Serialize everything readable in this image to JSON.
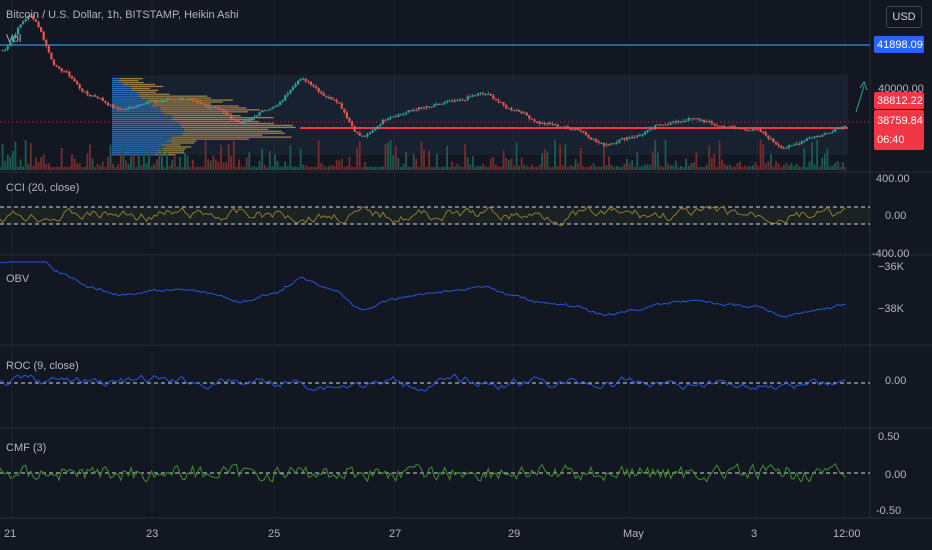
{
  "header": {
    "title": "Bitcoin / U.S. Dollar, 1h, BITSTAMP, Heikin Ashi",
    "vol_label": "Vol",
    "currency_button": "USD"
  },
  "price_tags": {
    "level_high": "41898.09",
    "current": "38812.22",
    "previous": "38759.84",
    "countdown": "06:40"
  },
  "colors": {
    "background": "#131722",
    "up": "#26a69a",
    "down": "#ef5350",
    "blue_level": "#2196f3",
    "poc_line": "#f23645",
    "indicator_line": "#2962ff",
    "cci_line": "#8d7a2f",
    "cmf_line": "#3f8f2a",
    "tag_red": "#f23645",
    "tag_blue": "#2962ff"
  },
  "chart_data": [
    {
      "type": "candlestick",
      "name": "price",
      "title": "Bitcoin / U.S. Dollar, 1h, BITSTAMP, Heikin Ashi",
      "x_ticks": [
        "21",
        "23",
        "25",
        "27",
        "29",
        "May",
        "3",
        "12:00"
      ],
      "y_ticks": [
        "40000.00"
      ],
      "ylim": [
        37500,
        42500
      ],
      "levels": {
        "blue_line": 41898.09,
        "poc_line": 38760
      },
      "close_path": [
        {
          "x": "21",
          "close": 41200
        },
        {
          "x": "21 12:00",
          "close": 42300
        },
        {
          "x": "22",
          "close": 40600
        },
        {
          "x": "22 12:00",
          "close": 39800
        },
        {
          "x": "23",
          "close": 39350
        },
        {
          "x": "23 12:00",
          "close": 39600
        },
        {
          "x": "24",
          "close": 39700
        },
        {
          "x": "24 12:00",
          "close": 39450
        },
        {
          "x": "25",
          "close": 38950
        },
        {
          "x": "25 12:00",
          "close": 39400
        },
        {
          "x": "26",
          "close": 40300
        },
        {
          "x": "26 12:00",
          "close": 39700
        },
        {
          "x": "27",
          "close": 38500
        },
        {
          "x": "27 12:00",
          "close": 39150
        },
        {
          "x": "28",
          "close": 39400
        },
        {
          "x": "28 12:00",
          "close": 39600
        },
        {
          "x": "29",
          "close": 39850
        },
        {
          "x": "29 12:00",
          "close": 39350
        },
        {
          "x": "30",
          "close": 38900
        },
        {
          "x": "30 12:00",
          "close": 38750
        },
        {
          "x": "May",
          "close": 38250
        },
        {
          "x": "May 12:00",
          "close": 38500
        },
        {
          "x": "2",
          "close": 38900
        },
        {
          "x": "2 12:00",
          "close": 39050
        },
        {
          "x": "3",
          "close": 38800
        },
        {
          "x": "3 12:00",
          "close": 38700
        },
        {
          "x": "4",
          "close": 38150
        },
        {
          "x": "4 12:00",
          "close": 38500
        },
        {
          "x": "12:00",
          "close": 38812.22
        }
      ]
    },
    {
      "type": "line",
      "name": "cci",
      "title": "CCI (20, close)",
      "y_ticks": [
        "400.00",
        "0.00",
        "-400.00"
      ],
      "ylim": [
        -400,
        400
      ],
      "bands": [
        100,
        -100
      ]
    },
    {
      "type": "line",
      "name": "obv",
      "title": "OBV",
      "y_ticks": [
        "−36K",
        "−38K"
      ]
    },
    {
      "type": "line",
      "name": "roc",
      "title": "ROC (9, close)",
      "y_ticks": [
        "0.00"
      ]
    },
    {
      "type": "line",
      "name": "cmf",
      "title": "CMF (3)",
      "y_ticks": [
        "0.50",
        "0.00",
        "-0.50"
      ],
      "ylim": [
        -0.5,
        0.5
      ]
    }
  ]
}
